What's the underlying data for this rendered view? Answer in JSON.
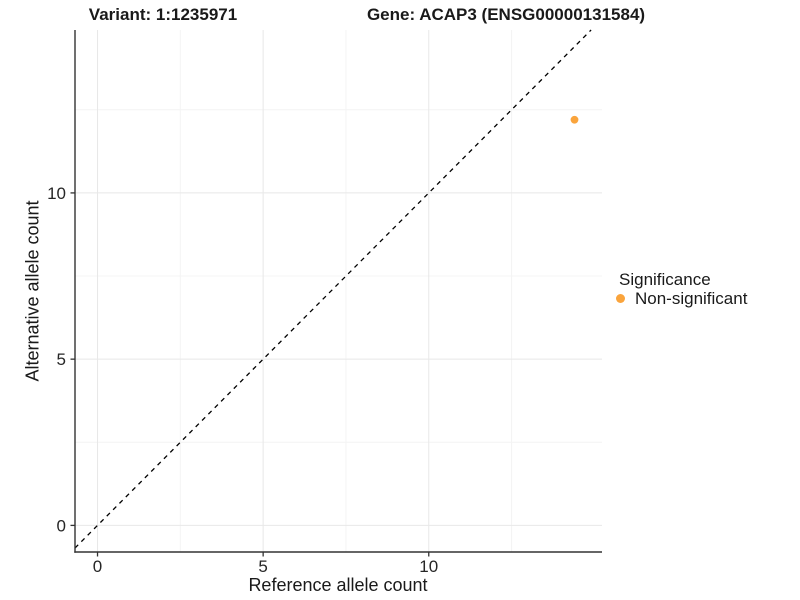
{
  "chart_data": {
    "type": "scatter",
    "titles": {
      "left": "Variant: 1:1235971",
      "right": "Gene: ACAP3 (ENSG00000131584)"
    },
    "xlabel": "Reference allele count",
    "ylabel": "Alternative allele count",
    "xlim": [
      -0.68,
      15.23
    ],
    "ylim": [
      -0.8,
      14.9
    ],
    "x_ticks": [
      0,
      5,
      10
    ],
    "y_ticks": [
      0,
      5,
      10
    ],
    "x_minor_ticks": [
      2.5,
      7.5,
      12.5
    ],
    "y_minor_ticks": [
      2.5,
      7.5,
      12.5
    ],
    "grid": "major+minor, very light gray, white panel background",
    "identity_line": {
      "style": "dashed",
      "slope": 1,
      "intercept": 0,
      "color": "#000000"
    },
    "series": [
      {
        "name": "Non-significant",
        "color": "#FAA43C",
        "points": [
          {
            "x": 14.4,
            "y": 12.2
          }
        ]
      }
    ],
    "legend": {
      "title": "Significance",
      "position": "right",
      "items": [
        {
          "label": "Non-significant",
          "color": "#FAA43C"
        }
      ]
    }
  },
  "colors": {
    "background": "#FFFFFF",
    "axis_line": "#333333",
    "tick_mark": "#333333",
    "grid_major": "#E8E8E8",
    "grid_minor": "#F4F4F4",
    "text": "#1A1A1A"
  }
}
